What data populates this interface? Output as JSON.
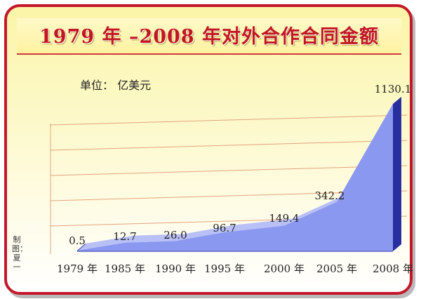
{
  "title": "1979 年 –2008 年对外合作合同金额",
  "unit_note": "单位： 亿美元",
  "credit": "制图：夏一",
  "colors": {
    "border": "#c4182a",
    "title": "#c21622",
    "area_front": "#8b98f0",
    "area_side": "#2a2fa0",
    "area_top": "#b8c0f6",
    "gridline": "#e3a37e"
  },
  "chart_data": {
    "type": "area",
    "categories": [
      "1979 年",
      "1985 年",
      "1990 年",
      "1995 年",
      "2000 年",
      "2005 年",
      "2008 年"
    ],
    "values": [
      0.5,
      12.7,
      26.0,
      96.7,
      149.4,
      342.2,
      1130.1
    ],
    "data_labels": [
      "0.5",
      "12.7",
      "26.0",
      "96.7",
      "149.4",
      "342.2",
      "1130.1"
    ],
    "title": "1979 年 –2008 年对外合作合同金额",
    "ylabel": "单位： 亿美元",
    "style": "3d",
    "gridlines": true,
    "legend": "none"
  }
}
